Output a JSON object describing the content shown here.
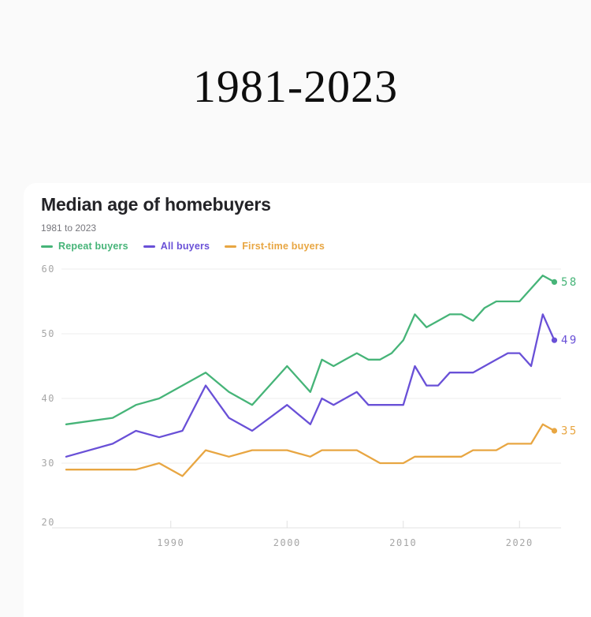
{
  "page": {
    "header_title": "1981-2023"
  },
  "chart_data": {
    "type": "line",
    "title": "Median age of homebuyers",
    "subtitle": "1981 to 2023",
    "legend_position": "top",
    "grid": "horizontal",
    "xlim": [
      1981,
      2023
    ],
    "ylim": [
      20,
      62
    ],
    "x_ticks": [
      1990,
      2000,
      2010,
      2020
    ],
    "y_ticks": [
      20,
      30,
      40,
      50,
      60
    ],
    "x": [
      1981,
      1985,
      1987,
      1989,
      1991,
      1993,
      1995,
      1997,
      2000,
      2002,
      2003,
      2004,
      2005,
      2006,
      2007,
      2008,
      2009,
      2010,
      2011,
      2012,
      2013,
      2014,
      2015,
      2016,
      2017,
      2018,
      2019,
      2020,
      2021,
      2022,
      2023
    ],
    "series": [
      {
        "name": "Repeat buyers",
        "color": "#46b478",
        "end_label": "58",
        "values": [
          36,
          37,
          39,
          40,
          42,
          44,
          41,
          39,
          45,
          41,
          46,
          45,
          46,
          47,
          46,
          46,
          47,
          49,
          53,
          51,
          52,
          53,
          53,
          52,
          54,
          55,
          55,
          55,
          57,
          59,
          58
        ]
      },
      {
        "name": "All buyers",
        "color": "#6950d7",
        "end_label": "49",
        "values": [
          31,
          33,
          35,
          34,
          35,
          42,
          37,
          35,
          39,
          36,
          40,
          39,
          40,
          41,
          39,
          39,
          39,
          39,
          45,
          42,
          42,
          44,
          44,
          44,
          45,
          46,
          47,
          47,
          45,
          53,
          49
        ]
      },
      {
        "name": "First-time buyers",
        "color": "#e8a642",
        "end_label": "35",
        "values": [
          29,
          29,
          29,
          30,
          28,
          32,
          31,
          32,
          32,
          31,
          32,
          32,
          32,
          32,
          31,
          30,
          30,
          30,
          31,
          31,
          31,
          31,
          31,
          32,
          32,
          32,
          33,
          33,
          33,
          36,
          35
        ]
      }
    ]
  }
}
